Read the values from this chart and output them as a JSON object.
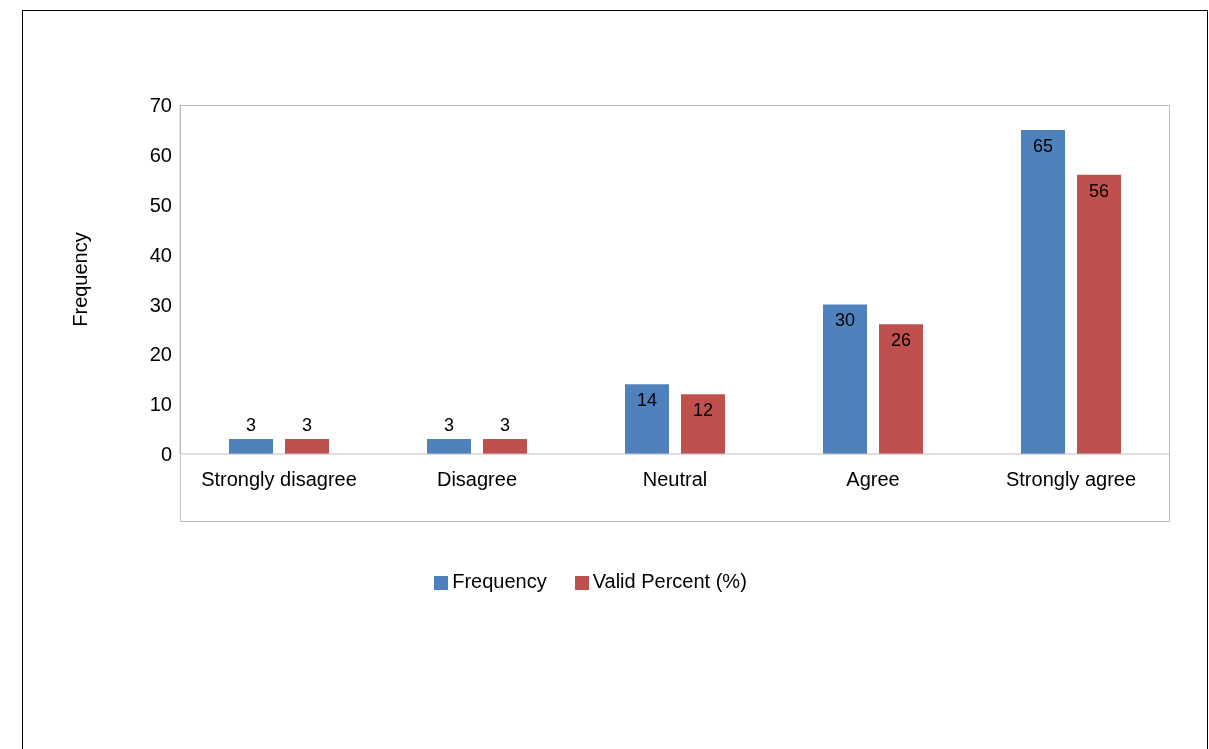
{
  "chart_data": {
    "type": "bar",
    "ylabel": "Frequency",
    "categories": [
      "Strongly disagree",
      "Disagree",
      "Neutral",
      "Agree",
      "Strongly agree"
    ],
    "series": [
      {
        "name": "Frequency",
        "color": "#4f81bd",
        "values": [
          3,
          3,
          14,
          30,
          65
        ]
      },
      {
        "name": "Valid Percent (%)",
        "color": "#c0504d",
        "values": [
          3,
          3,
          12,
          26,
          56
        ]
      }
    ],
    "ylim": [
      0,
      70
    ],
    "yticks": [
      0,
      10,
      20,
      30,
      40,
      50,
      60,
      70
    ],
    "grid": false,
    "legend": "bottom",
    "data_labels": true
  }
}
